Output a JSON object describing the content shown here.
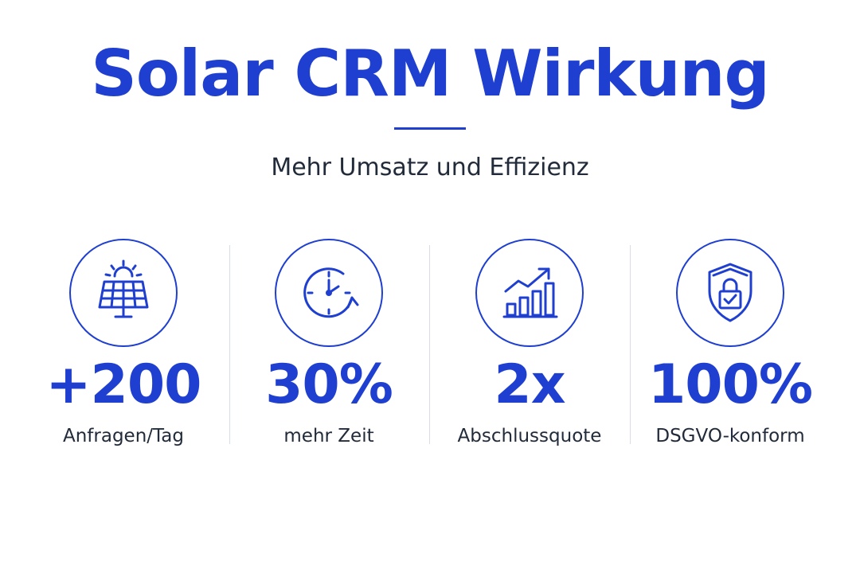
{
  "header": {
    "title": "Solar CRM Wirkung",
    "subtitle": "Mehr Umsatz und Effizienz"
  },
  "colors": {
    "accent": "#1f3fd0",
    "text_dark": "#222b3a",
    "separator": "#d9dde6",
    "background": "#ffffff"
  },
  "stats": [
    {
      "icon": "solar-panel-icon",
      "value": "+200",
      "label": "Anfragen/Tag"
    },
    {
      "icon": "clock-icon",
      "value": "30%",
      "label": "mehr Zeit"
    },
    {
      "icon": "growth-chart-icon",
      "value": "2x",
      "label": "Abschlussquote"
    },
    {
      "icon": "shield-lock-icon",
      "value": "100%",
      "label": "DSGVO-konform"
    }
  ]
}
